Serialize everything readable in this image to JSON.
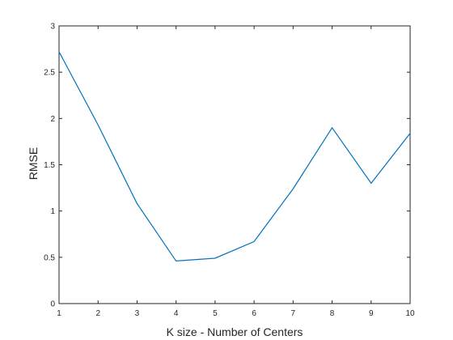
{
  "chart_data": {
    "type": "line",
    "title": "",
    "xlabel": "K size - Number of Centers",
    "ylabel": "RMSE",
    "xlim": [
      1,
      10
    ],
    "ylim": [
      0,
      3
    ],
    "xticks": [
      1,
      2,
      3,
      4,
      5,
      6,
      7,
      8,
      9,
      10
    ],
    "yticks": [
      0,
      0.5,
      1,
      1.5,
      2,
      2.5,
      3
    ],
    "grid": false,
    "series": [
      {
        "color": "#0072BD",
        "x": [
          1,
          2,
          3,
          4,
          5,
          6,
          7,
          8,
          9,
          10
        ],
        "y": [
          2.72,
          1.93,
          1.08,
          0.46,
          0.49,
          0.67,
          1.24,
          1.9,
          1.3,
          1.84
        ]
      }
    ]
  }
}
